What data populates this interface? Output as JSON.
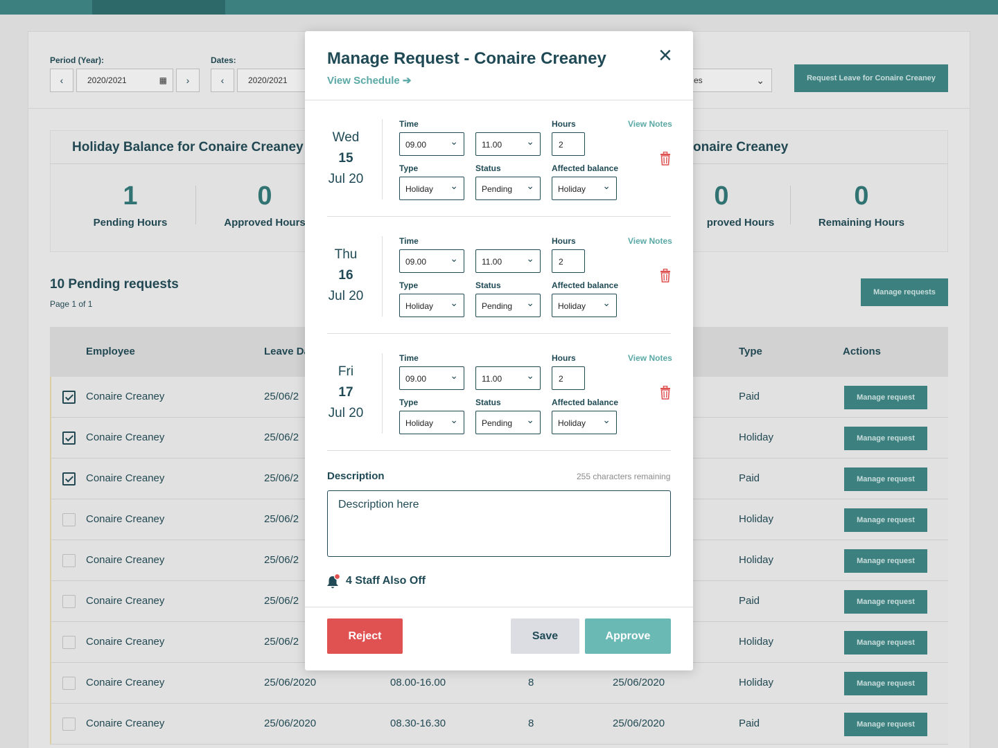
{
  "filters": {
    "period_label": "Period (Year):",
    "period_value": "2020/2021",
    "dates_label": "Dates:",
    "dates_value": "2020/2021",
    "select_partial": "es",
    "request_leave_button": "Request Leave for Conaire Creaney"
  },
  "balance": {
    "title_left": "Holiday Balance for Conaire Creaney",
    "title_right_partial": "onaire Creaney",
    "stats": [
      {
        "value": "1",
        "label": "Pending Hours"
      },
      {
        "value": "0",
        "label": "Approved Hours"
      },
      {
        "value": "0",
        "label": "proved Hours"
      },
      {
        "value": "0",
        "label": "Remaining Hours"
      }
    ]
  },
  "pending": {
    "title": "10 Pending requests",
    "page_info": "Page 1 of 1",
    "manage_requests_button": "Manage requests"
  },
  "table": {
    "headers": {
      "employee": "Employee",
      "leave_date": "Leave Da",
      "type": "Type",
      "actions": "Actions"
    },
    "rows": [
      {
        "checked": true,
        "employee": "Conaire Creaney",
        "leave_date": "25/06/2",
        "time": "",
        "hours": "",
        "date2": "",
        "type": "Paid",
        "action": "Manage request"
      },
      {
        "checked": true,
        "employee": "Conaire Creaney",
        "leave_date": "25/06/2",
        "time": "",
        "hours": "",
        "date2": "",
        "type": "Holiday",
        "action": "Manage request"
      },
      {
        "checked": true,
        "employee": "Conaire Creaney",
        "leave_date": "25/06/2",
        "time": "",
        "hours": "",
        "date2": "",
        "type": "Paid",
        "action": "Manage request"
      },
      {
        "checked": false,
        "employee": "Conaire Creaney",
        "leave_date": "25/06/2",
        "time": "",
        "hours": "",
        "date2": "",
        "type": "Holiday",
        "action": "Manage request"
      },
      {
        "checked": false,
        "employee": "Conaire Creaney",
        "leave_date": "25/06/2",
        "time": "",
        "hours": "",
        "date2": "",
        "type": "Holiday",
        "action": "Manage request"
      },
      {
        "checked": false,
        "employee": "Conaire Creaney",
        "leave_date": "25/06/2",
        "time": "",
        "hours": "",
        "date2": "",
        "type": "Paid",
        "action": "Manage request"
      },
      {
        "checked": false,
        "employee": "Conaire Creaney",
        "leave_date": "25/06/2",
        "time": "",
        "hours": "",
        "date2": "",
        "type": "Holiday",
        "action": "Manage request"
      },
      {
        "checked": false,
        "employee": "Conaire Creaney",
        "leave_date": "25/06/2020",
        "time": "08.00-16.00",
        "hours": "8",
        "date2": "25/06/2020",
        "type": "Holiday",
        "action": "Manage request"
      },
      {
        "checked": false,
        "employee": "Conaire Creaney",
        "leave_date": "25/06/2020",
        "time": "08.30-16.30",
        "hours": "8",
        "date2": "25/06/2020",
        "type": "Paid",
        "action": "Manage request"
      }
    ]
  },
  "modal": {
    "title": "Manage Request - Conaire Creaney",
    "close_icon": "×",
    "view_schedule": "View Schedule ➔",
    "labels": {
      "time": "Time",
      "hours": "Hours",
      "type": "Type",
      "status": "Status",
      "affected_balance": "Affected balance",
      "view_notes": "View Notes"
    },
    "days": [
      {
        "weekday": "Wed",
        "day": "15",
        "month_year": "Jul 20",
        "time_from": "09.00",
        "time_to": "11.00",
        "hours": "2",
        "type": "Holiday",
        "status": "Pending",
        "affected_balance": "Holiday"
      },
      {
        "weekday": "Thu",
        "day": "16",
        "month_year": "Jul 20",
        "time_from": "09.00",
        "time_to": "11.00",
        "hours": "2",
        "type": "Holiday",
        "status": "Pending",
        "affected_balance": "Holiday"
      },
      {
        "weekday": "Fri",
        "day": "17",
        "month_year": "Jul 20",
        "time_from": "09.00",
        "time_to": "11.00",
        "hours": "2",
        "type": "Holiday",
        "status": "Pending",
        "affected_balance": "Holiday"
      }
    ],
    "description_label": "Description",
    "description_remaining": "255 characters remaining",
    "description_text": "Description here",
    "staff_off": "4 Staff Also Off",
    "buttons": {
      "reject": "Reject",
      "save": "Save",
      "approve": "Approve"
    },
    "colors": {
      "reject": "#e05252",
      "save": "#dcdde3",
      "approve": "#6bb9b5",
      "accent": "#5aa9a6",
      "trash": "#e05252"
    }
  }
}
